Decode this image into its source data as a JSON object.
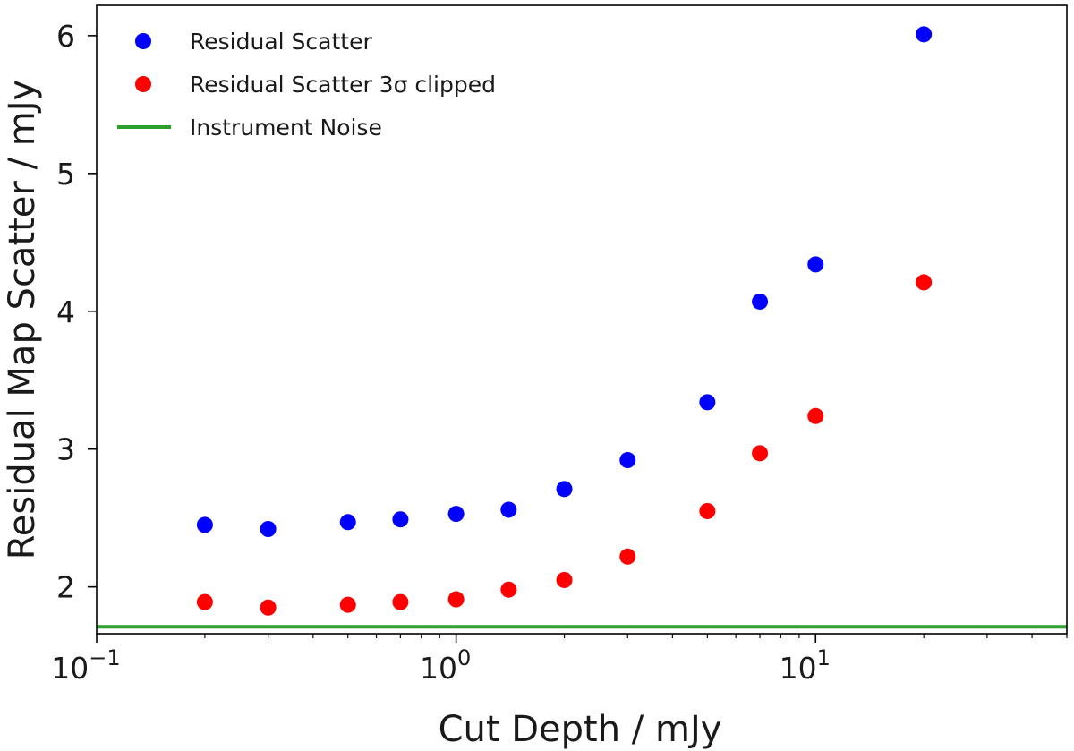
{
  "chart_data": {
    "type": "scatter",
    "xlabel": "Cut Depth / mJy",
    "ylabel": "Residual Map Scatter / mJy",
    "xscale": "log",
    "xlim": [
      0.1,
      50
    ],
    "ylim": [
      1.66,
      6.22
    ],
    "x_ticks": [
      {
        "value": 0.1,
        "base": "10",
        "exp": "−1"
      },
      {
        "value": 1,
        "base": "10",
        "exp": "0"
      },
      {
        "value": 10,
        "base": "10",
        "exp": "1"
      }
    ],
    "y_ticks": [
      2,
      3,
      4,
      5,
      6
    ],
    "grid": false,
    "legend_position": "top-left",
    "series": [
      {
        "name": "Residual Scatter",
        "color": "#0000ff",
        "marker": "circle",
        "x": [
          0.2,
          0.3,
          0.5,
          0.7,
          1.0,
          1.4,
          2.0,
          3.0,
          5.0,
          7.0,
          10.0,
          20.0
        ],
        "y": [
          2.45,
          2.42,
          2.47,
          2.49,
          2.53,
          2.56,
          2.71,
          2.92,
          3.34,
          4.07,
          4.34,
          6.01
        ]
      },
      {
        "name": "Residual Scatter 3σ clipped",
        "color": "#ff0000",
        "marker": "circle",
        "x": [
          0.2,
          0.3,
          0.5,
          0.7,
          1.0,
          1.4,
          2.0,
          3.0,
          5.0,
          7.0,
          10.0,
          20.0
        ],
        "y": [
          1.89,
          1.85,
          1.87,
          1.89,
          1.91,
          1.98,
          2.05,
          2.22,
          2.55,
          2.97,
          3.24,
          4.21
        ]
      }
    ],
    "hlines": [
      {
        "name": "Instrument Noise",
        "color": "#2ca02c",
        "y": 1.71
      }
    ]
  }
}
